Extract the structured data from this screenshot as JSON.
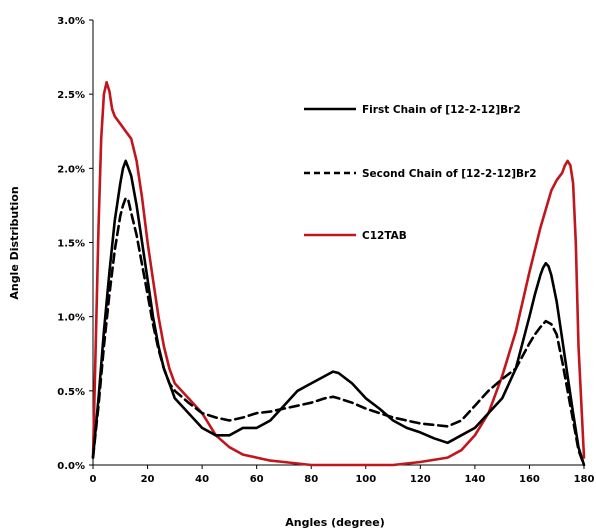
{
  "chart_data": {
    "type": "line",
    "xlabel": "Angles (degree)",
    "ylabel": "Angle Distribution",
    "xlim": [
      0,
      180
    ],
    "ylim": [
      0,
      3.0
    ],
    "xticks": [
      0,
      20,
      40,
      60,
      80,
      100,
      120,
      140,
      160,
      180
    ],
    "xtick_labels": [
      "0",
      "20",
      "40",
      "60",
      "80",
      "100",
      "120",
      "140",
      "160",
      "180"
    ],
    "yticks": [
      0,
      0.5,
      1.0,
      1.5,
      2.0,
      2.5,
      3.0
    ],
    "ytick_labels": [
      "0.0%",
      "0.5%",
      "1.0%",
      "1.5%",
      "2.0%",
      "2.5%",
      "3.0%"
    ],
    "grid": false,
    "legend_position": "top-right",
    "series": [
      {
        "name": "First Chain of [12-2-12]Br2",
        "color": "#000000",
        "dash": "solid",
        "x": [
          0,
          2,
          4,
          6,
          8,
          10,
          11,
          12,
          13,
          14,
          16,
          18,
          20,
          22,
          24,
          26,
          28,
          30,
          35,
          40,
          45,
          50,
          55,
          60,
          65,
          70,
          75,
          80,
          85,
          88,
          90,
          95,
          100,
          105,
          110,
          115,
          120,
          125,
          130,
          135,
          140,
          145,
          150,
          155,
          160,
          162,
          164,
          165,
          166,
          167,
          168,
          170,
          172,
          174,
          176,
          178,
          180
        ],
        "y": [
          0.05,
          0.45,
          0.9,
          1.3,
          1.65,
          1.9,
          2.0,
          2.05,
          2.0,
          1.95,
          1.75,
          1.5,
          1.25,
          1.0,
          0.8,
          0.65,
          0.55,
          0.45,
          0.35,
          0.25,
          0.2,
          0.2,
          0.25,
          0.25,
          0.3,
          0.4,
          0.5,
          0.55,
          0.6,
          0.63,
          0.62,
          0.55,
          0.45,
          0.38,
          0.3,
          0.25,
          0.22,
          0.18,
          0.15,
          0.2,
          0.25,
          0.35,
          0.45,
          0.65,
          1.0,
          1.15,
          1.28,
          1.33,
          1.36,
          1.34,
          1.28,
          1.1,
          0.85,
          0.6,
          0.35,
          0.12,
          0.0
        ]
      },
      {
        "name": "Second Chain of [12-2-12]Br2",
        "color": "#000000",
        "dash": "dashed",
        "x": [
          0,
          2,
          4,
          6,
          8,
          10,
          11,
          12,
          13,
          14,
          16,
          18,
          20,
          22,
          24,
          26,
          28,
          30,
          35,
          40,
          45,
          50,
          55,
          60,
          65,
          70,
          75,
          80,
          85,
          88,
          90,
          95,
          100,
          105,
          110,
          115,
          120,
          125,
          130,
          135,
          140,
          145,
          150,
          155,
          160,
          162,
          164,
          166,
          168,
          170,
          172,
          174,
          176,
          178,
          180
        ],
        "y": [
          0.05,
          0.4,
          0.8,
          1.15,
          1.45,
          1.68,
          1.75,
          1.8,
          1.78,
          1.7,
          1.55,
          1.35,
          1.15,
          0.95,
          0.78,
          0.65,
          0.55,
          0.5,
          0.42,
          0.35,
          0.32,
          0.3,
          0.32,
          0.35,
          0.36,
          0.38,
          0.4,
          0.42,
          0.45,
          0.46,
          0.45,
          0.42,
          0.38,
          0.35,
          0.32,
          0.3,
          0.28,
          0.27,
          0.26,
          0.3,
          0.4,
          0.5,
          0.58,
          0.65,
          0.82,
          0.88,
          0.93,
          0.97,
          0.95,
          0.88,
          0.7,
          0.5,
          0.3,
          0.1,
          0.0
        ]
      },
      {
        "name": "C12TAB",
        "color": "#c0161c",
        "dash": "solid",
        "x": [
          0,
          1,
          2,
          3,
          4,
          5,
          6,
          7,
          8,
          10,
          12,
          14,
          16,
          18,
          20,
          22,
          24,
          26,
          28,
          30,
          35,
          40,
          45,
          50,
          55,
          60,
          65,
          70,
          80,
          90,
          100,
          110,
          120,
          130,
          135,
          140,
          145,
          150,
          155,
          160,
          164,
          168,
          170,
          172,
          173,
          174,
          175,
          176,
          177,
          178,
          180
        ],
        "y": [
          0.05,
          0.8,
          1.6,
          2.2,
          2.5,
          2.58,
          2.52,
          2.4,
          2.35,
          2.3,
          2.25,
          2.2,
          2.05,
          1.8,
          1.5,
          1.25,
          1.0,
          0.8,
          0.65,
          0.55,
          0.45,
          0.35,
          0.2,
          0.12,
          0.07,
          0.05,
          0.03,
          0.02,
          0.0,
          0.0,
          0.0,
          0.0,
          0.02,
          0.05,
          0.1,
          0.2,
          0.35,
          0.6,
          0.9,
          1.3,
          1.6,
          1.85,
          1.92,
          1.97,
          2.02,
          2.05,
          2.02,
          1.9,
          1.5,
          0.8,
          0.05
        ]
      }
    ]
  }
}
